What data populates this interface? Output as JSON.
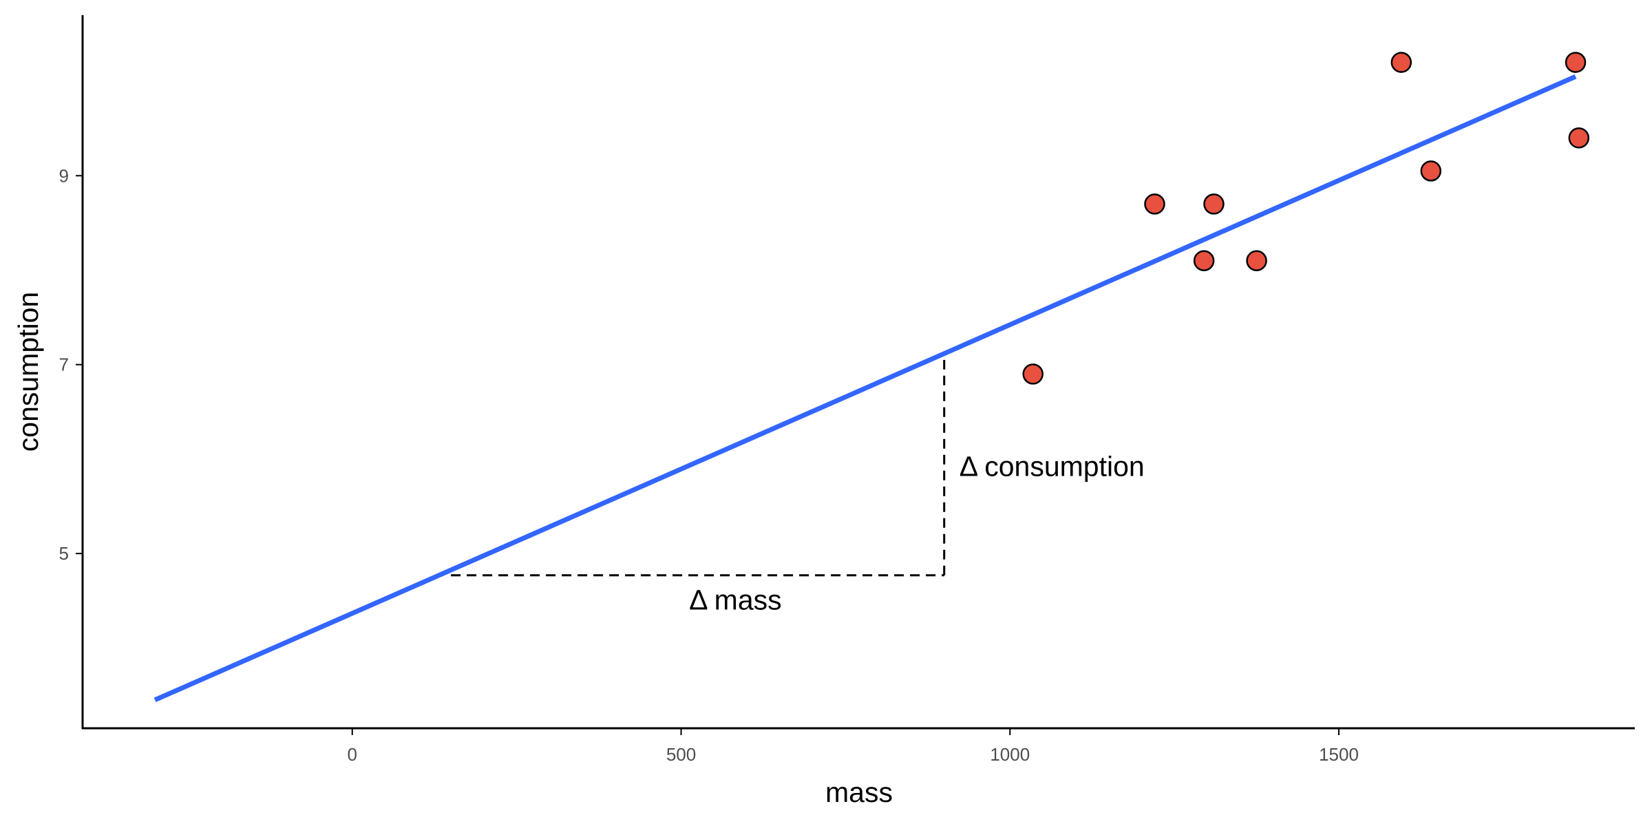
{
  "chart_data": {
    "type": "scatter",
    "xlabel": "mass",
    "ylabel": "consumption",
    "xlim": [
      -410,
      1950
    ],
    "ylim": [
      3.15,
      10.7
    ],
    "xticks": [
      0,
      500,
      1000,
      1500
    ],
    "yticks": [
      5,
      7,
      9
    ],
    "grid": false,
    "legend": "none",
    "points": [
      {
        "x": 1035,
        "y": 6.9
      },
      {
        "x": 1220,
        "y": 8.7
      },
      {
        "x": 1295,
        "y": 8.1
      },
      {
        "x": 1310,
        "y": 8.7
      },
      {
        "x": 1375,
        "y": 8.1
      },
      {
        "x": 1595,
        "y": 10.2
      },
      {
        "x": 1640,
        "y": 9.05
      },
      {
        "x": 1860,
        "y": 10.2
      },
      {
        "x": 1865,
        "y": 9.4
      }
    ],
    "fit_line": {
      "x": [
        -300,
        1860
      ],
      "y": [
        3.45,
        10.05
      ]
    },
    "annotation": {
      "corner": [
        900,
        4.77
      ],
      "mass_start_x": 150,
      "consumption_top_y": 7.05,
      "delta_mass_label": "Δ  mass",
      "delta_consumption_label": "Δ  consumption"
    },
    "colors": {
      "point_fill": "#e8513f",
      "point_stroke": "#000000",
      "line": "#3366ff",
      "axis": "#000000"
    }
  }
}
